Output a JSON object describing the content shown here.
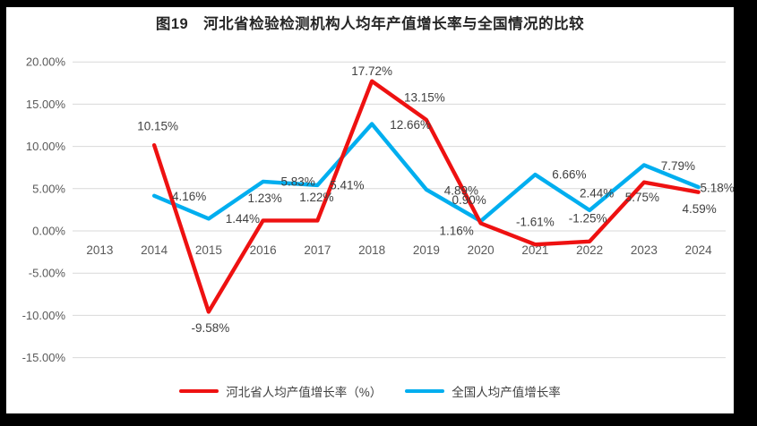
{
  "frame": {
    "surround_color": "#000000",
    "page_color": "#ffffff"
  },
  "chart_data": {
    "type": "line",
    "title": "图19　河北省检验检测机构人均年产值增长率与全国情况的比较",
    "categories": [
      "2013",
      "2014",
      "2015",
      "2016",
      "2017",
      "2018",
      "2019",
      "2020",
      "2021",
      "2022",
      "2023",
      "2024"
    ],
    "series": [
      {
        "id": "national",
        "name": "全国人均产值增长率",
        "color": "#00aeef",
        "values": [
          null,
          4.16,
          1.44,
          5.83,
          5.41,
          12.66,
          4.89,
          1.16,
          6.66,
          2.44,
          7.79,
          5.18
        ],
        "labels": [
          "",
          "4.16%",
          "1.44%",
          "5.83%",
          "5.41%",
          "12.66%",
          "4.89%",
          "1.16%",
          "6.66%",
          "2.44%",
          "7.79%",
          "5.18%"
        ],
        "label_offsets": [
          null,
          [
            39,
            1
          ],
          [
            38,
            0
          ],
          [
            39,
            0
          ],
          [
            33,
            0
          ],
          [
            43,
            1
          ],
          [
            39,
            1
          ],
          [
            -27,
            11
          ],
          [
            38,
            0
          ],
          [
            8,
            -19
          ],
          [
            38,
            1
          ],
          [
            21,
            1
          ]
        ]
      },
      {
        "id": "hebei",
        "name": "河北省人均产值增长率（%）",
        "color": "#ee1111",
        "values": [
          null,
          10.15,
          -9.58,
          1.23,
          1.22,
          17.72,
          13.15,
          0.9,
          -1.61,
          -1.25,
          5.75,
          4.59
        ],
        "labels": [
          "",
          "10.15%",
          "-9.58%",
          "1.23%",
          "1.22%",
          "17.72%",
          "13.15%",
          "0.90%",
          "-1.61%",
          "-1.25%",
          "5.75%",
          "4.59%"
        ],
        "label_offsets": [
          null,
          [
            4,
            -21
          ],
          [
            2,
            18
          ],
          [
            2,
            -25
          ],
          [
            -1,
            -26
          ],
          [
            0,
            -11
          ],
          [
            -2,
            -25
          ],
          [
            -13,
            -26
          ],
          [
            0,
            -25
          ],
          [
            -2,
            -26
          ],
          [
            -2,
            17
          ],
          [
            1,
            19
          ]
        ]
      }
    ],
    "y_axis": {
      "min": -15,
      "max": 20,
      "step": 5,
      "tick_labels": [
        "20.00%",
        "15.00%",
        "10.00%",
        "5.00%",
        "0.00%",
        "-5.00%",
        "-10.00%",
        "-15.00%"
      ]
    },
    "grid": true,
    "legend_position": "bottom",
    "colors": {
      "gridline": "#d9d9d9",
      "axis_text": "#595959",
      "data_label_text": "#404040"
    },
    "legend_order": [
      "hebei",
      "national"
    ]
  }
}
